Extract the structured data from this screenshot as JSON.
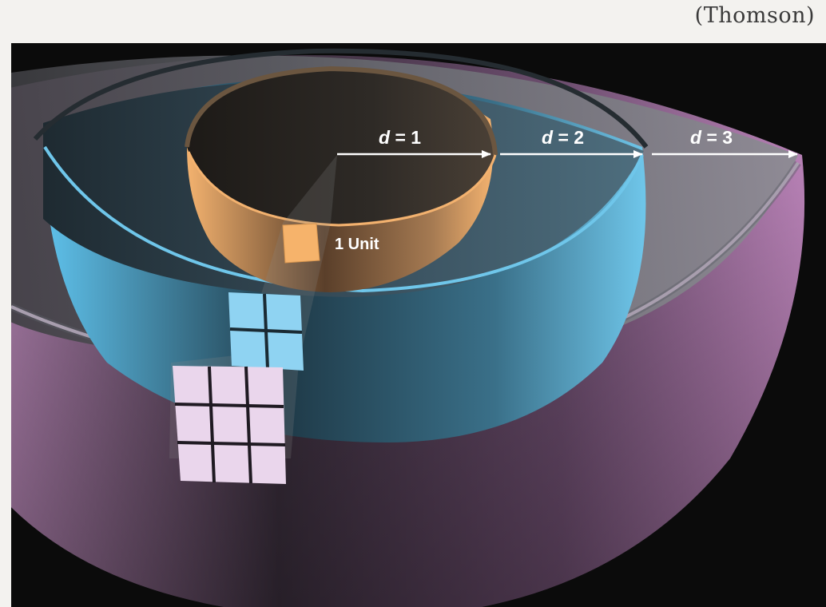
{
  "credit": "(Thomson)",
  "diagram": {
    "labels": {
      "d1": {
        "var": "d",
        "rest": " = 1"
      },
      "d2": {
        "var": "d",
        "rest": " = 2"
      },
      "d3": {
        "var": "d",
        "rest": " = 3"
      },
      "unit": "1 Unit"
    },
    "colors": {
      "inner_shell": "#f2b06c",
      "middle_shell": "#5fc2ec",
      "outer_shell": "#c48ac2",
      "grid_small": "#f6b36b",
      "grid_middle": "#8fd3f2",
      "grid_large": "#ead6ec",
      "background": "#0b0b0b"
    },
    "grid_counts": {
      "inner": "1x1",
      "middle": "2x2",
      "outer": "3x3"
    }
  }
}
